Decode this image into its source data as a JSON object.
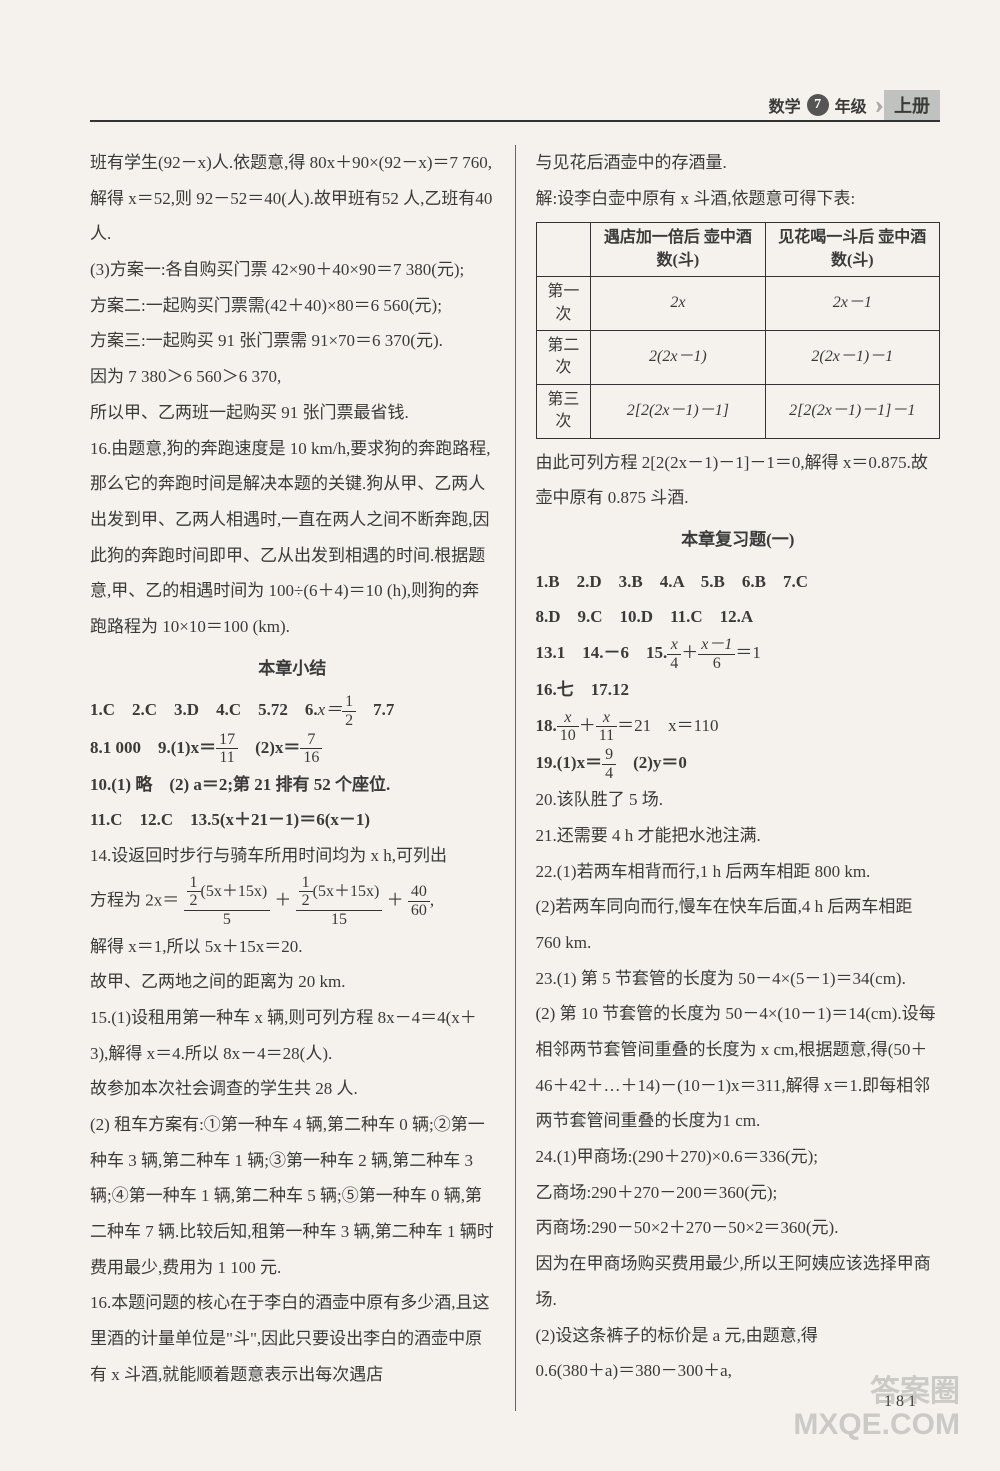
{
  "header": {
    "subject": "数学",
    "grade_badge": "7",
    "grade_suffix": "年级",
    "volume": "上册"
  },
  "page_number": "181",
  "watermark": {
    "line1": "答案圈",
    "line2": "MXQE.COM"
  },
  "left": {
    "p1": "班有学生(92－x)人.依题意,得 80x＋90×(92－x)＝7 760,解得 x＝52,则 92－52＝40(人).故甲班有52 人,乙班有40 人.",
    "p2": "(3)方案一:各自购买门票 42×90＋40×90＝7 380(元);",
    "p3": "方案二:一起购买门票需(42＋40)×80＝6 560(元);",
    "p4": "方案三:一起购买 91 张门票需 91×70＝6 370(元).",
    "p5": "因为 7 380＞6 560＞6 370,",
    "p6": "所以甲、乙两班一起购买 91 张门票最省钱.",
    "p7": "16.由题意,狗的奔跑速度是 10 km/h,要求狗的奔跑路程,那么它的奔跑时间是解决本题的关键.狗从甲、乙两人出发到甲、乙两人相遇时,一直在两人之间不断奔跑,因此狗的奔跑时间即甲、乙从出发到相遇的时间.根据题意,甲、乙的相遇时间为 100÷(6＋4)＝10 (h),则狗的奔跑路程为 10×10＝100 (km).",
    "section_a": "本章小结",
    "a1": "1.C　2.C　3.D　4.C　5.72　6.",
    "a1_eq_lhs": "x＝",
    "a1_frac_num": "1",
    "a1_frac_den": "2",
    "a1_tail": "　7.7",
    "a2_pre": "8.1 000　9.(1)x＝",
    "a2_f1_num": "17",
    "a2_f1_den": "11",
    "a2_mid": "　(2)x＝",
    "a2_f2_num": "7",
    "a2_f2_den": "16",
    "a3": "10.(1) 略　(2) a＝2;第 21 排有 52 个座位.",
    "a4": "11.C　12.C　13.5(x＋21－1)＝6(x－1)",
    "a5": "14.设返回时步行与骑车所用时间均为 x h,可列出",
    "a6_pre": "方程为 2x＝",
    "a6_big_num1_small_num": "1",
    "a6_big_num1_small_den": "2",
    "a6_big_num1_tail": "(5x＋15x)",
    "a6_big_den1": "5",
    "a6_plus": "＋",
    "a6_big_num2_small_num": "1",
    "a6_big_num2_small_den": "2",
    "a6_big_num2_tail": "(5x＋15x)",
    "a6_big_den2": "15",
    "a6_plus2": "＋",
    "a6_f3_num": "40",
    "a6_f3_den": "60",
    "a6_tail": ",",
    "a7": "解得 x＝1,所以 5x＋15x＝20.",
    "a8": "故甲、乙两地之间的距离为 20 km.",
    "a9": "15.(1)设租用第一种车 x 辆,则可列方程 8x－4＝4(x＋3),解得 x＝4.所以 8x－4＝28(人).",
    "a10": "故参加本次社会调查的学生共 28 人.",
    "a11": "(2) 租车方案有:①第一种车 4 辆,第二种车 0 辆;②第一种车 3 辆,第二种车 1 辆;③第一种车 2 辆,第二种车 3 辆;④第一种车 1 辆,第二种车 5 辆;⑤第一种车 0 辆,第二种车 7 辆.比较后知,租第一种车 3 辆,第二种车 1 辆时费用最少,费用为 1 100 元.",
    "a12": "16.本题问题的核心在于李白的酒壶中原有多少酒,且这里酒的计量单位是\"斗\",因此只要设出李白的酒壶中原有 x 斗酒,就能顺着题意表示出每次遇店"
  },
  "right": {
    "p1": "与见花后酒壶中的存酒量.",
    "p2": "解:设李白壶中原有 x 斗酒,依题意可得下表:",
    "table": {
      "headers": [
        "",
        "遇店加一倍后\n壶中酒数(斗)",
        "见花喝一斗后\n壶中酒数(斗)"
      ],
      "rows": [
        [
          "第一次",
          "2x",
          "2x－1"
        ],
        [
          "第二次",
          "2(2x－1)",
          "2(2x－1)－1"
        ],
        [
          "第三次",
          "2[2(2x－1)－1]",
          "2[2(2x－1)－1]－1"
        ]
      ]
    },
    "p3": "由此可列方程 2[2(2x－1)－1]－1＝0,解得 x＝0.875.故壶中原有 0.875 斗酒.",
    "section_b": "本章复习题(一)",
    "b1": "1.B　2.D　3.B　4.A　5.B　6.B　7.C",
    "b2": "8.D　9.C　10.D　11.C　12.A",
    "b3_pre": "13.1　14.－6　15.",
    "b3_f1_num": "x",
    "b3_f1_den": "4",
    "b3_mid": "＋",
    "b3_f2_num": "x－1",
    "b3_f2_den": "6",
    "b3_tail": "＝1",
    "b4": "16.七　17.12",
    "b5_pre": "18.",
    "b5_f1_num": "x",
    "b5_f1_den": "10",
    "b5_mid": "＋",
    "b5_f2_num": "x",
    "b5_f2_den": "11",
    "b5_tail": "＝21　x＝110",
    "b6_pre": "19.(1)x＝",
    "b6_f_num": "9",
    "b6_f_den": "4",
    "b6_tail": "　(2)y＝0",
    "b7": "20.该队胜了 5 场.",
    "b8": "21.还需要 4 h 才能把水池注满.",
    "b9": "22.(1)若两车相背而行,1 h 后两车相距 800 km.",
    "b10": "(2)若两车同向而行,慢车在快车后面,4 h 后两车相距 760 km.",
    "b11": "23.(1) 第 5 节套管的长度为 50－4×(5－1)＝34(cm).",
    "b12": "(2) 第 10 节套管的长度为 50－4×(10－1)＝14(cm).设每相邻两节套管间重叠的长度为 x cm,根据题意,得(50＋46＋42＋…＋14)－(10－1)x＝311,解得 x＝1.即每相邻两节套管间重叠的长度为1 cm.",
    "b13": "24.(1)甲商场:(290＋270)×0.6＝336(元);",
    "b14": "乙商场:290＋270－200＝360(元);",
    "b15": "丙商场:290－50×2＋270－50×2＝360(元).",
    "b16": "因为在甲商场购买费用最少,所以王阿姨应该选择甲商场.",
    "b17": "(2)设这条裤子的标价是 a 元,由题意,得",
    "b18": "0.6(380＋a)＝380－300＋a,"
  }
}
